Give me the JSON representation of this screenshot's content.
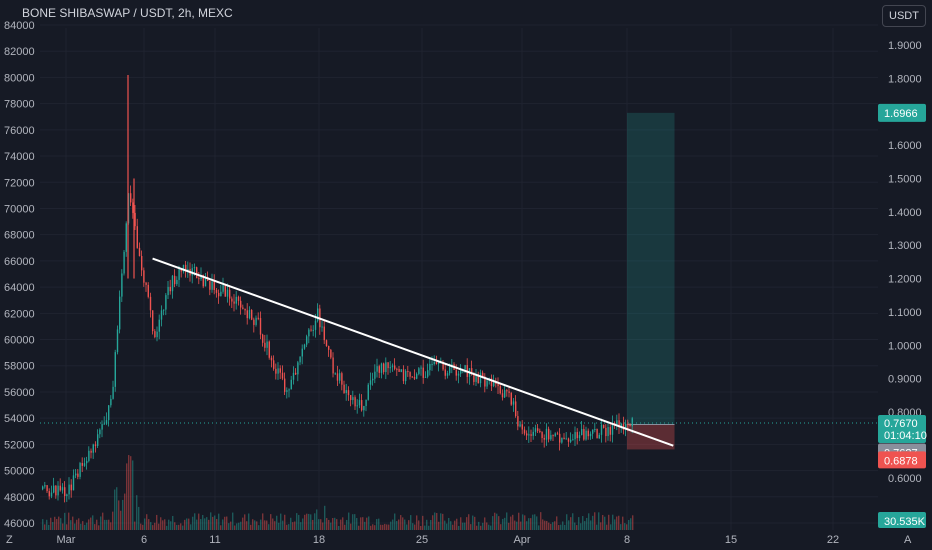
{
  "title": "BONE SHIBASWAP / USDT, 2h, MEXC",
  "currency_button": "USDT",
  "colors": {
    "background": "#161a25",
    "up": "#26a69a",
    "down": "#ef5350",
    "trendline": "#ffffff",
    "target_zone": "#26a69a",
    "stop_zone": "#ef5350",
    "price_line": "#26a69a"
  },
  "left_axis": {
    "label": "",
    "ticks": [
      "84000",
      "82000",
      "80000",
      "78000",
      "76000",
      "74000",
      "72000",
      "70000",
      "68000",
      "66000",
      "64000",
      "62000",
      "60000",
      "58000",
      "56000",
      "54000",
      "52000",
      "50000",
      "48000",
      "46000"
    ]
  },
  "right_axis": {
    "ticks": [
      "1.9000",
      "1.8000",
      "1.7000",
      "1.6000",
      "1.5000",
      "1.4000",
      "1.3000",
      "1.2000",
      "1.1000",
      "1.0000",
      "0.9000",
      "0.8000",
      "0.6000"
    ]
  },
  "x_axis": {
    "ticks": [
      "Mar",
      "6",
      "11",
      "18",
      "25",
      "Apr",
      "8",
      "15",
      "22"
    ]
  },
  "price_tags": {
    "target": "1.6966",
    "last_price": "0.7670",
    "countdown": "01:04:10",
    "mid": "0.7627",
    "stop": "0.6878",
    "volume": "30.535K"
  },
  "corner_labels": {
    "left": "Z",
    "right": "A"
  },
  "chart_data": {
    "type": "candlestick",
    "price_scale": "right axis (USDT)",
    "volume_scale": "left axis",
    "x_range": [
      "2024-02-28",
      "2024-04-22"
    ],
    "y_range_right": [
      0.6,
      1.9
    ],
    "y_range_left": [
      46000,
      84000
    ],
    "close_path": [
      {
        "date": "2024-02-28",
        "price": 0.57
      },
      {
        "date": "2024-03-01",
        "price": 0.56
      },
      {
        "date": "2024-03-02",
        "price": 0.64
      },
      {
        "date": "2024-03-03",
        "price": 0.72
      },
      {
        "date": "2024-03-04",
        "price": 0.82
      },
      {
        "date": "2024-03-05",
        "price": 1.34
      },
      {
        "date": "2024-03-05",
        "price": 1.45
      },
      {
        "date": "2024-03-06",
        "price": 1.26
      },
      {
        "date": "2024-03-07",
        "price": 1.02
      },
      {
        "date": "2024-03-08",
        "price": 1.18
      },
      {
        "date": "2024-03-09",
        "price": 1.24
      },
      {
        "date": "2024-03-10",
        "price": 1.2
      },
      {
        "date": "2024-03-12",
        "price": 1.15
      },
      {
        "date": "2024-03-14",
        "price": 1.06
      },
      {
        "date": "2024-03-15",
        "price": 0.94
      },
      {
        "date": "2024-03-16",
        "price": 0.86
      },
      {
        "date": "2024-03-17",
        "price": 0.98
      },
      {
        "date": "2024-03-18",
        "price": 1.1
      },
      {
        "date": "2024-03-19",
        "price": 0.93
      },
      {
        "date": "2024-03-20",
        "price": 0.86
      },
      {
        "date": "2024-03-21",
        "price": 0.81
      },
      {
        "date": "2024-03-22",
        "price": 0.94
      },
      {
        "date": "2024-03-24",
        "price": 0.91
      },
      {
        "date": "2024-03-26",
        "price": 0.93
      },
      {
        "date": "2024-03-28",
        "price": 0.92
      },
      {
        "date": "2024-03-30",
        "price": 0.88
      },
      {
        "date": "2024-03-31",
        "price": 0.85
      },
      {
        "date": "2024-04-01",
        "price": 0.72
      },
      {
        "date": "2024-04-02",
        "price": 0.74
      },
      {
        "date": "2024-04-04",
        "price": 0.72
      },
      {
        "date": "2024-04-06",
        "price": 0.74
      },
      {
        "date": "2024-04-08",
        "price": 0.767
      }
    ],
    "wick_extremes": [
      {
        "date": "2024-03-05",
        "high": 1.81
      },
      {
        "date": "2024-03-05",
        "high": 1.5
      }
    ],
    "trendline": {
      "from": {
        "date": "2024-03-07",
        "price": 1.26
      },
      "to": {
        "date": "2024-04-11",
        "price": 0.75
      }
    },
    "long_position": {
      "entry": 0.7627,
      "target": 1.6966,
      "stop": 0.6878,
      "from_date": "2024-04-08",
      "to_date": "2024-04-10"
    },
    "last_price": 0.767,
    "volume_last": "30.535K",
    "grid": true,
    "legend": "none"
  }
}
